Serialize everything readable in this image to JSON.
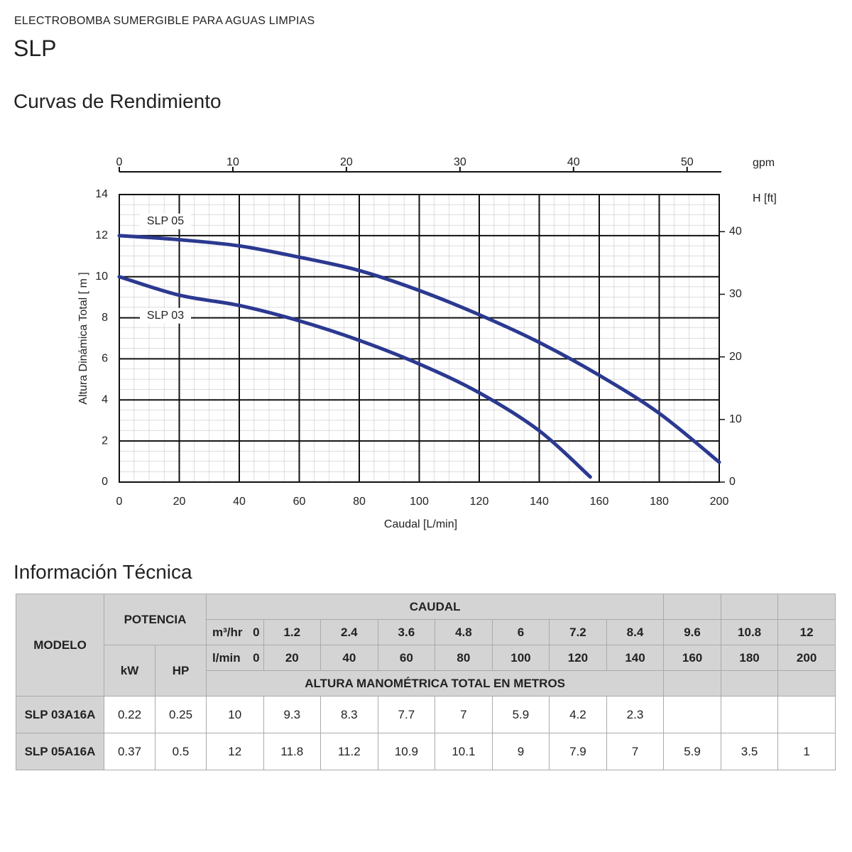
{
  "header": {
    "subtitle": "ELECTROBOMBA SUMERGIBLE PARA AGUAS LIMPIAS",
    "title": "SLP"
  },
  "chart_section": "Curvas de Rendimiento",
  "chart_data": {
    "type": "line",
    "xlabel": "Caudal [L/min]",
    "ylabel": "Altura Dinámica Total [ m ]",
    "x2label": "gpm",
    "y2label": "H [ft]",
    "xlim": [
      0,
      200
    ],
    "xticks": [
      0,
      20,
      40,
      60,
      80,
      100,
      120,
      140,
      160,
      180,
      200
    ],
    "ylim": [
      0,
      14
    ],
    "yticks": [
      0,
      2,
      4,
      6,
      8,
      10,
      12,
      14
    ],
    "x2lim": [
      0,
      52.83
    ],
    "x2ticks": [
      0,
      10,
      20,
      30,
      40,
      50
    ],
    "y2lim": [
      0,
      45.93
    ],
    "y2ticks": [
      0,
      10,
      20,
      30,
      40
    ],
    "grid": true,
    "series": [
      {
        "name": "SLP 05",
        "color": "#2b3990",
        "x": [
          0,
          20,
          40,
          60,
          80,
          100,
          120,
          140,
          160,
          180,
          200
        ],
        "values": [
          12,
          11.8,
          11.5,
          10.95,
          10.3,
          9.33,
          8.15,
          6.8,
          5.2,
          3.35,
          0.97
        ]
      },
      {
        "name": "SLP 03",
        "color": "#2b3990",
        "x": [
          0,
          20,
          40,
          60,
          80,
          100,
          120,
          140,
          157
        ],
        "values": [
          10,
          9.1,
          8.6,
          7.85,
          6.9,
          5.75,
          4.35,
          2.5,
          0.25
        ]
      }
    ]
  },
  "table_section": "Información Técnica",
  "table": {
    "headers": {
      "model": "MODELO",
      "power": "POTENCIA",
      "kw": "kW",
      "hp": "HP",
      "flow": "CAUDAL",
      "m3h_label": "m³/hr",
      "m3h": [
        0,
        1.2,
        2.4,
        3.6,
        4.8,
        6,
        7.2,
        8.4,
        9.6,
        10.8,
        12
      ],
      "lmin_label": "l/min",
      "lmin": [
        0,
        20,
        40,
        60,
        80,
        100,
        120,
        140,
        160,
        180,
        200
      ],
      "head": "ALTURA MANOMÉTRICA TOTAL EN METROS"
    },
    "rows": [
      {
        "model": "SLP 03A16A",
        "kw": 0.22,
        "hp": 0.25,
        "heights": [
          10,
          9.3,
          8.3,
          7.7,
          7,
          5.9,
          4.2,
          2.3
        ]
      },
      {
        "model": "SLP 05A16A",
        "kw": 0.37,
        "hp": 0.5,
        "heights": [
          12,
          11.8,
          11.2,
          10.9,
          10.1,
          9,
          7.9,
          7,
          5.9,
          3.5,
          1
        ]
      }
    ]
  }
}
